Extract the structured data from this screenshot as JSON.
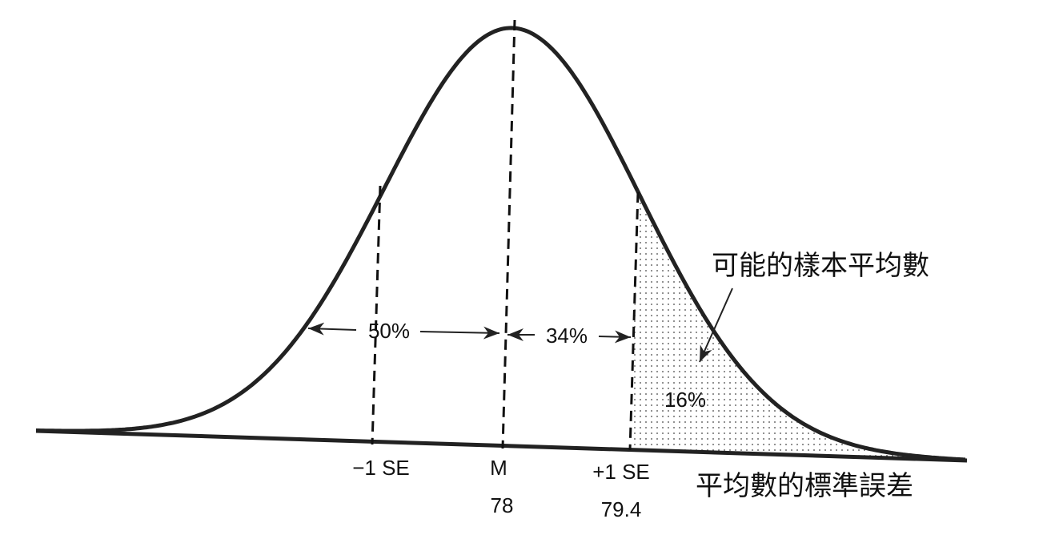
{
  "diagram": {
    "region_labels": {
      "left": "50%",
      "middle": "34%",
      "tail": "16%"
    },
    "callout": "可能的樣本平均數",
    "axis_labels": {
      "minus_se": "−1 SE",
      "mean": "M",
      "mean_value": "78",
      "plus_se": "+1 SE",
      "plus_se_value": "79.4",
      "axis_title": "平均數的標準誤差"
    }
  }
}
